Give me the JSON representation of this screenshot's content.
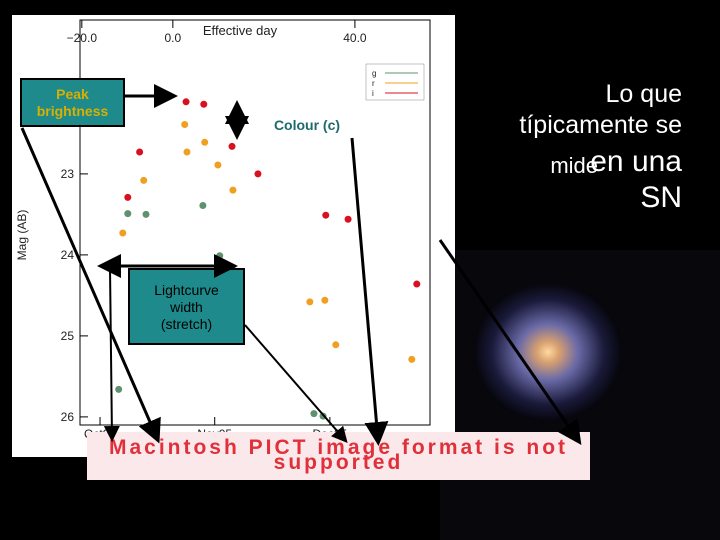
{
  "slide": {
    "text_lines": [
      "Lo que",
      "típicamente se",
      "mide",
      "en una",
      "SN"
    ]
  },
  "annotations": {
    "peak": "Peak brightness",
    "colour": "Colour (c)",
    "width": "Lightcurve width (stretch)"
  },
  "placeholder": "Macintosh PICT image format is not supported",
  "chart_data": {
    "type": "scatter",
    "x_label": "Effective day",
    "y_label": "Mag (AB)",
    "xlim": [
      -20.4,
      56.5
    ],
    "xticks": [
      {
        "value": -20,
        "label": "−20.0"
      },
      {
        "value": 0,
        "label": "0.0"
      },
      {
        "value": 40,
        "label": "40.0"
      }
    ],
    "x2ticks": [
      {
        "value": -16,
        "label": "Oct05"
      },
      {
        "value": 9.2,
        "label": "Nov05"
      },
      {
        "value": 34.5,
        "label": "Dec05"
      }
    ],
    "ylim": [
      26.1,
      21.1
    ],
    "yticks": [
      23,
      24,
      25,
      26
    ],
    "legend": "upper right",
    "series": [
      {
        "name": "g",
        "color": "#5f9070",
        "x": [
          -11.9,
          -9.9,
          -5.9,
          6.6,
          10.3,
          13.0,
          31.0,
          33.0
        ],
        "values": [
          25.66,
          23.49,
          23.5,
          23.39,
          24.01,
          24.16,
          25.96,
          25.99
        ]
      },
      {
        "name": "r",
        "color": "#f0a020",
        "x": [
          -11.0,
          -6.4,
          2.6,
          3.1,
          7.0,
          9.9,
          13.2,
          30.1,
          33.4,
          35.8,
          52.5
        ],
        "values": [
          23.73,
          23.08,
          22.39,
          22.73,
          22.61,
          22.89,
          23.2,
          24.58,
          24.56,
          25.11,
          25.29
        ]
      },
      {
        "name": "i",
        "color": "#d81020",
        "x": [
          -9.9,
          -7.3,
          2.9,
          6.8,
          13.0,
          18.7,
          33.6,
          38.5,
          53.6
        ],
        "values": [
          23.29,
          22.73,
          22.11,
          22.14,
          22.66,
          23.0,
          23.51,
          23.56,
          24.36
        ]
      }
    ]
  }
}
